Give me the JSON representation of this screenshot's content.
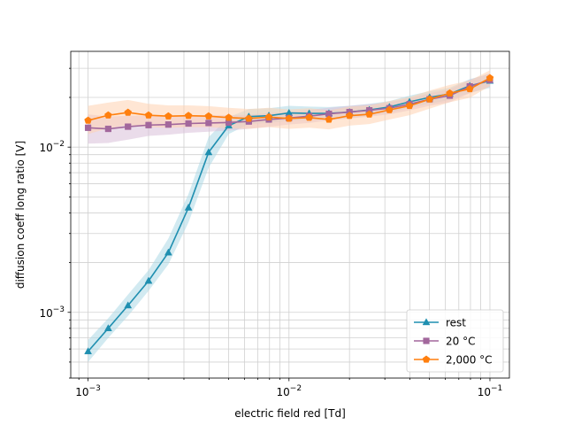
{
  "chart_data": {
    "type": "line",
    "xscale": "log",
    "yscale": "log",
    "xlabel": "electric field red [Td]",
    "ylabel": "diffusion coeff long ratio [V]",
    "xlim": [
      0.00082,
      0.125
    ],
    "ylim": [
      0.0004,
      0.038
    ],
    "grid": true,
    "legend_position": "bottom-right",
    "x_tick_labels": [
      {
        "value": 0.001,
        "base": "10",
        "exp": "−3"
      },
      {
        "value": 0.01,
        "base": "10",
        "exp": "−2"
      },
      {
        "value": 0.1,
        "base": "10",
        "exp": "−1"
      }
    ],
    "y_tick_labels": [
      {
        "value": 0.001,
        "base": "10",
        "exp": "−3"
      },
      {
        "value": 0.01,
        "base": "10",
        "exp": "−2"
      }
    ],
    "x": [
      0.001,
      0.00126,
      0.00158,
      0.002,
      0.00251,
      0.00316,
      0.00398,
      0.00501,
      0.00631,
      0.00794,
      0.01,
      0.0126,
      0.0158,
      0.02,
      0.0251,
      0.0316,
      0.0398,
      0.0501,
      0.0631,
      0.0794,
      0.1
    ],
    "series": [
      {
        "name": "rest",
        "color": "#1f8fb0",
        "band_color": "#add8e6",
        "marker": "triangle",
        "values": [
          0.00058,
          0.0008,
          0.0011,
          0.00155,
          0.0023,
          0.0043,
          0.0093,
          0.0135,
          0.0153,
          0.0155,
          0.0161,
          0.016,
          0.016,
          0.0163,
          0.0168,
          0.0175,
          0.0188,
          0.02,
          0.021,
          0.0235,
          0.0252
        ],
        "band_lower": [
          0.0005,
          0.0007,
          0.00095,
          0.00135,
          0.00195,
          0.0035,
          0.0075,
          0.012,
          0.0138,
          0.014,
          0.0145,
          0.0146,
          0.0147,
          0.015,
          0.0155,
          0.0162,
          0.0173,
          0.0183,
          0.0193,
          0.0213,
          0.0228
        ],
        "band_upper": [
          0.00068,
          0.00092,
          0.00128,
          0.0018,
          0.0028,
          0.0052,
          0.0115,
          0.0152,
          0.017,
          0.0172,
          0.0178,
          0.0176,
          0.0175,
          0.0178,
          0.0183,
          0.019,
          0.0205,
          0.0218,
          0.0229,
          0.0258,
          0.0278
        ]
      },
      {
        "name": "20 °C",
        "color": "#a2679c",
        "band_color": "#d8bfd8",
        "marker": "square",
        "values": [
          0.0131,
          0.0129,
          0.0133,
          0.0136,
          0.0137,
          0.0139,
          0.014,
          0.0141,
          0.0143,
          0.0147,
          0.015,
          0.0154,
          0.0159,
          0.0163,
          0.0167,
          0.0172,
          0.0182,
          0.0195,
          0.0205,
          0.0233,
          0.0255
        ],
        "band_lower": [
          0.0105,
          0.0106,
          0.0111,
          0.0117,
          0.0119,
          0.0122,
          0.0124,
          0.0126,
          0.0129,
          0.0133,
          0.0137,
          0.014,
          0.0145,
          0.0149,
          0.0153,
          0.0158,
          0.0167,
          0.0178,
          0.0187,
          0.0212,
          0.0232
        ],
        "band_upper": [
          0.0158,
          0.0153,
          0.0155,
          0.0155,
          0.0155,
          0.0156,
          0.0156,
          0.0156,
          0.0157,
          0.0161,
          0.0163,
          0.0168,
          0.0173,
          0.0178,
          0.0182,
          0.0187,
          0.0198,
          0.0212,
          0.0224,
          0.0256,
          0.028
        ]
      },
      {
        "name": "2,000 °C",
        "color": "#ff7f0e",
        "band_color": "#ffd2b0",
        "marker": "pentagon",
        "values": [
          0.0145,
          0.0156,
          0.0162,
          0.0156,
          0.0154,
          0.0155,
          0.0154,
          0.0151,
          0.0149,
          0.0152,
          0.0149,
          0.0151,
          0.0147,
          0.0155,
          0.0158,
          0.0168,
          0.0178,
          0.0195,
          0.0212,
          0.0225,
          0.0262
        ],
        "band_lower": [
          0.012,
          0.013,
          0.0136,
          0.0132,
          0.0131,
          0.0132,
          0.0132,
          0.013,
          0.0129,
          0.0132,
          0.0129,
          0.0131,
          0.0128,
          0.0135,
          0.0138,
          0.0147,
          0.0156,
          0.0171,
          0.0187,
          0.0199,
          0.0234
        ],
        "band_upper": [
          0.0178,
          0.0186,
          0.0193,
          0.0183,
          0.0179,
          0.0179,
          0.0177,
          0.0173,
          0.017,
          0.0173,
          0.0169,
          0.0172,
          0.0167,
          0.0176,
          0.0179,
          0.019,
          0.0201,
          0.022,
          0.0238,
          0.0253,
          0.0292
        ]
      }
    ]
  }
}
